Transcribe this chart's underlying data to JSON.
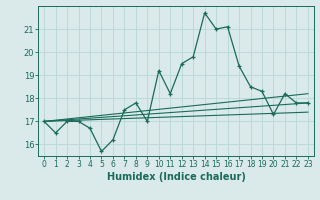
{
  "title": "",
  "xlabel": "Humidex (Indice chaleur)",
  "bg_color": "#daeaea",
  "grid_color": "#b8d8d8",
  "line_color": "#1a6b5a",
  "xlim": [
    -0.5,
    23.5
  ],
  "ylim": [
    15.5,
    22.0
  ],
  "yticks": [
    16,
    17,
    18,
    19,
    20,
    21
  ],
  "xticks": [
    0,
    1,
    2,
    3,
    4,
    5,
    6,
    7,
    8,
    9,
    10,
    11,
    12,
    13,
    14,
    15,
    16,
    17,
    18,
    19,
    20,
    21,
    22,
    23
  ],
  "line1_x": [
    0,
    1,
    2,
    3,
    4,
    5,
    6,
    7,
    8,
    9,
    10,
    11,
    12,
    13,
    14,
    15,
    16,
    17,
    18,
    19,
    20,
    21,
    22,
    23
  ],
  "line1_y": [
    17.0,
    16.5,
    17.0,
    17.0,
    16.7,
    15.7,
    16.2,
    17.5,
    17.8,
    17.0,
    19.2,
    18.2,
    19.5,
    19.8,
    21.7,
    21.0,
    21.1,
    19.4,
    18.5,
    18.3,
    17.3,
    18.2,
    17.8,
    17.8
  ],
  "line2_x": [
    0,
    23
  ],
  "line2_y": [
    17.0,
    18.2
  ],
  "line3_x": [
    0,
    23
  ],
  "line3_y": [
    17.0,
    17.8
  ],
  "line4_x": [
    0,
    23
  ],
  "line4_y": [
    17.0,
    17.4
  ]
}
